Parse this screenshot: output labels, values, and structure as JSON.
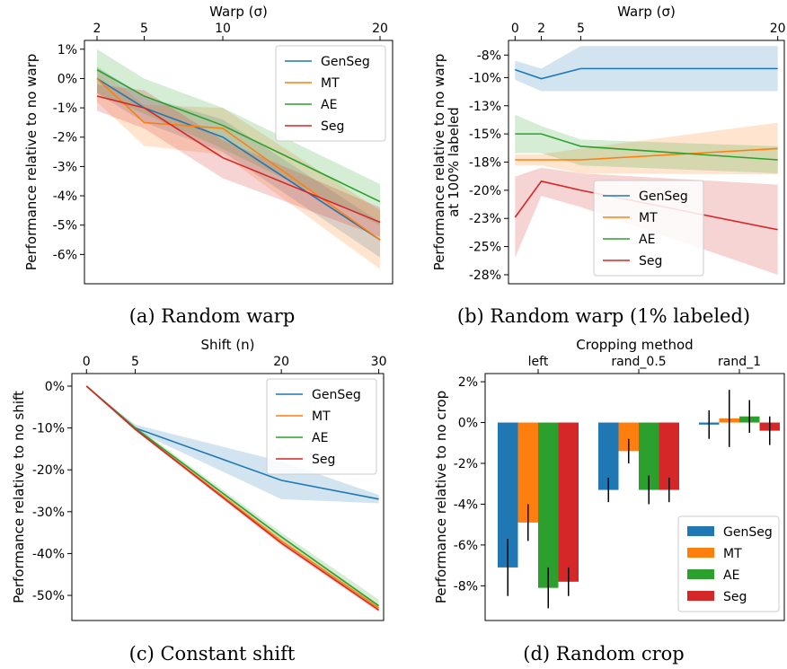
{
  "chart_data": [
    {
      "id": "a",
      "type": "line",
      "caption": "(a) Random warp",
      "xlabel": "Warp (σ)",
      "ylabel": "Performance relative to no warp",
      "x": [
        2,
        5,
        10,
        20
      ],
      "xticks": [
        2,
        5,
        10,
        20
      ],
      "xtick_labels": [
        "2",
        "5",
        "10",
        "20"
      ],
      "xlim": [
        1.2,
        20.8
      ],
      "ylim": [
        -7.0,
        1.3
      ],
      "yticks": [
        1,
        0,
        -1,
        -2,
        -3,
        -4,
        -5,
        -6
      ],
      "ytick_labels": [
        "1%",
        "0%",
        "-1%",
        "-2%",
        "-3%",
        "-4%",
        "-5%",
        "-6%"
      ],
      "legend_position": "top-right",
      "series": [
        {
          "name": "GenSeg",
          "color": "#1f77b4",
          "values": [
            0.0,
            -1.0,
            -2.0,
            -5.5
          ],
          "lower": [
            -0.5,
            -1.5,
            -2.5,
            -6.1
          ],
          "upper": [
            0.4,
            -0.6,
            -1.4,
            -4.9
          ]
        },
        {
          "name": "MT",
          "color": "#ff7f0e",
          "values": [
            0.0,
            -1.5,
            -1.7,
            -5.5
          ],
          "lower": [
            -0.8,
            -2.3,
            -2.6,
            -6.5
          ],
          "upper": [
            0.4,
            -0.9,
            -1.0,
            -4.5
          ]
        },
        {
          "name": "AE",
          "color": "#2ca02c",
          "values": [
            0.3,
            -0.6,
            -1.6,
            -4.2
          ],
          "lower": [
            -0.5,
            -1.2,
            -2.4,
            -5.0
          ],
          "upper": [
            1.0,
            0.0,
            -1.0,
            -3.6
          ]
        },
        {
          "name": "Seg",
          "color": "#d62728",
          "values": [
            -0.6,
            -1.0,
            -2.7,
            -4.9
          ],
          "lower": [
            -1.1,
            -1.7,
            -3.4,
            -5.4
          ],
          "upper": [
            -0.2,
            -0.4,
            -2.1,
            -4.4
          ]
        }
      ]
    },
    {
      "id": "b",
      "type": "line",
      "caption": "(b) Random warp (1% labeled)",
      "xlabel": "Warp (σ)",
      "ylabel": "Performance relative to no warp",
      "ylabel2": "at 100% labeled",
      "x": [
        0,
        2,
        5,
        20
      ],
      "xticks": [
        0,
        2,
        5,
        20
      ],
      "xtick_labels": [
        "0",
        "2",
        "5",
        "20"
      ],
      "xlim": [
        -0.5,
        20.5
      ],
      "ylim": [
        -28.3,
        -6.7
      ],
      "yticks": [
        -8,
        -10,
        -12.5,
        -15,
        -17.5,
        -20,
        -22.5,
        -25,
        -27.5
      ],
      "ytick_labels": [
        "-8%",
        "-10%",
        "-13%",
        "-15%",
        "-18%",
        "-20%",
        "-23%",
        "-25%",
        "-28%"
      ],
      "legend_position": "lower-center",
      "series": [
        {
          "name": "GenSeg",
          "color": "#1f77b4",
          "values": [
            -9.3,
            -10.1,
            -9.2,
            -9.2
          ],
          "lower": [
            -10.2,
            -11.2,
            -11.2,
            -11.2
          ],
          "upper": [
            -8.5,
            -9.2,
            -7.2,
            -7.2
          ]
        },
        {
          "name": "MT",
          "color": "#ff7f0e",
          "values": [
            -17.3,
            -17.3,
            -17.3,
            -16.3
          ],
          "lower": [
            -17.8,
            -17.8,
            -18.5,
            -18.6
          ],
          "upper": [
            -16.8,
            -16.8,
            -16.3,
            -14.0
          ]
        },
        {
          "name": "AE",
          "color": "#2ca02c",
          "values": [
            -15.0,
            -15.0,
            -16.1,
            -17.3
          ],
          "lower": [
            -16.7,
            -16.7,
            -17.8,
            -18.5
          ],
          "upper": [
            -13.3,
            -14.3,
            -15.5,
            -16.1
          ]
        },
        {
          "name": "Seg",
          "color": "#d62728",
          "values": [
            -22.4,
            -19.2,
            -20.0,
            -23.5
          ],
          "lower": [
            -26.0,
            -20.5,
            -21.5,
            -27.5
          ],
          "upper": [
            -18.8,
            -18.0,
            -18.5,
            -19.5
          ]
        }
      ]
    },
    {
      "id": "c",
      "type": "line",
      "caption": "(c) Constant shift",
      "xlabel": "Shift (n)",
      "ylabel": "Performance relative to no shift",
      "x": [
        0,
        5,
        20,
        30
      ],
      "xticks": [
        0,
        5,
        20,
        30
      ],
      "xtick_labels": [
        "0",
        "5",
        "20",
        "30"
      ],
      "xlim": [
        -1.5,
        30.5
      ],
      "ylim": [
        -56.0,
        3.0
      ],
      "yticks": [
        0,
        -10,
        -20,
        -30,
        -40,
        -50
      ],
      "ytick_labels": [
        "0%",
        "-10%",
        "-20%",
        "-30%",
        "-40%",
        "-50%"
      ],
      "legend_position": "top-right",
      "series": [
        {
          "name": "GenSeg",
          "color": "#1f77b4",
          "values": [
            0,
            -10.0,
            -22.5,
            -27.0
          ],
          "lower": [
            0,
            -10.6,
            -27.0,
            -28.0
          ],
          "upper": [
            0,
            -9.2,
            -18.0,
            -26.0
          ]
        },
        {
          "name": "MT",
          "color": "#ff7f0e",
          "values": [
            0,
            -10.3,
            -37.0,
            -53.0
          ],
          "lower": [
            0,
            -10.6,
            -37.8,
            -53.8
          ],
          "upper": [
            0,
            -10.0,
            -36.2,
            -52.2
          ]
        },
        {
          "name": "AE",
          "color": "#2ca02c",
          "values": [
            0,
            -10.0,
            -36.0,
            -52.5
          ],
          "lower": [
            0,
            -10.5,
            -37.0,
            -53.5
          ],
          "upper": [
            0,
            -9.5,
            -35.0,
            -51.0
          ]
        },
        {
          "name": "Seg",
          "color": "#d62728",
          "values": [
            0,
            -10.3,
            -37.5,
            -53.5
          ],
          "lower": [
            0,
            -10.6,
            -38.0,
            -54.0
          ],
          "upper": [
            0,
            -10.0,
            -37.0,
            -53.0
          ]
        }
      ]
    },
    {
      "id": "d",
      "type": "bar",
      "caption": "(d) Random crop",
      "xlabel": "Cropping method",
      "ylabel": "Performance relative to no crop",
      "categories": [
        "left",
        "rand_0.5",
        "rand_1"
      ],
      "ylim": [
        -9.7,
        2.4
      ],
      "yticks": [
        2,
        0,
        -2,
        -4,
        -6,
        -8
      ],
      "ytick_labels": [
        "2%",
        "0%",
        "-2%",
        "-4%",
        "-6%",
        "-8%"
      ],
      "legend_position": "lower-right",
      "series": [
        {
          "name": "GenSeg",
          "color": "#1f77b4",
          "values": [
            -7.1,
            -3.3,
            -0.1
          ],
          "errors": [
            1.4,
            0.6,
            0.7
          ]
        },
        {
          "name": "MT",
          "color": "#ff7f0e",
          "values": [
            -4.9,
            -1.4,
            0.2
          ],
          "errors": [
            0.9,
            0.6,
            1.4
          ]
        },
        {
          "name": "AE",
          "color": "#2ca02c",
          "values": [
            -8.1,
            -3.3,
            0.3
          ],
          "errors": [
            1.0,
            0.7,
            0.8
          ]
        },
        {
          "name": "Seg",
          "color": "#d62728",
          "values": [
            -7.8,
            -3.3,
            -0.4
          ],
          "errors": [
            0.7,
            0.6,
            0.7
          ]
        }
      ]
    }
  ]
}
